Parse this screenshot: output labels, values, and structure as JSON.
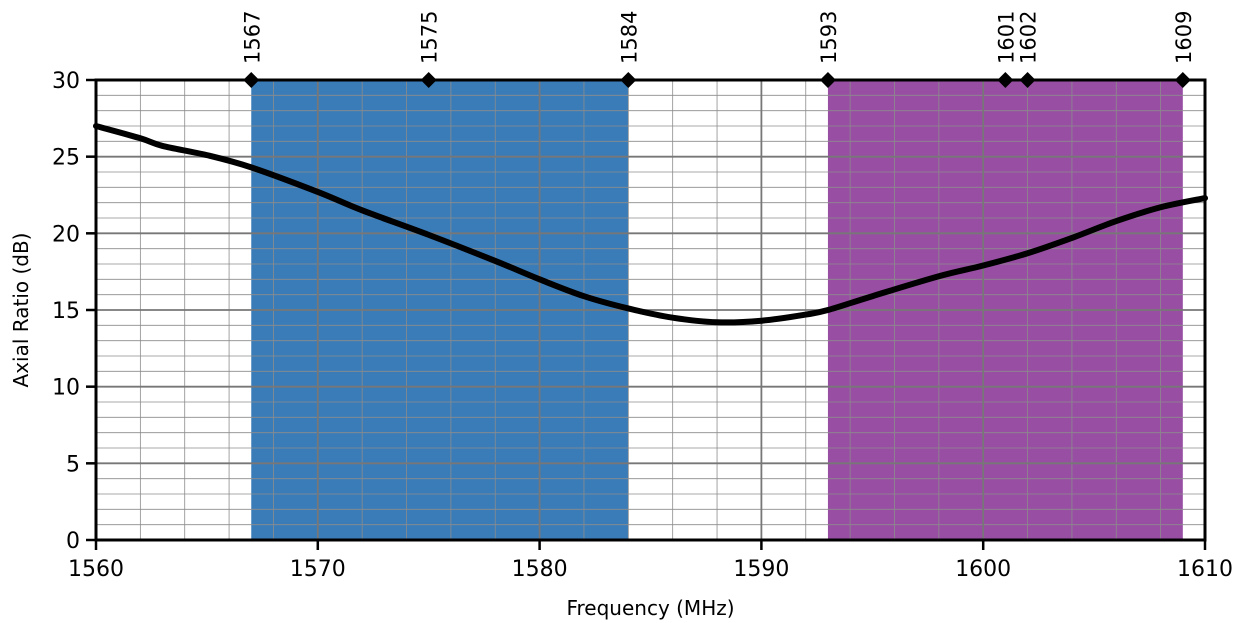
{
  "chart_data": {
    "type": "line",
    "title": "",
    "xlabel": "Frequency (MHz)",
    "ylabel": "Axial Ratio (dB)",
    "xlim": [
      1560,
      1610
    ],
    "ylim": [
      0,
      30
    ],
    "x_ticks": [
      1560,
      1570,
      1580,
      1590,
      1600,
      1610
    ],
    "x_tick_labels": [
      "1560",
      "1570",
      "1580",
      "1590",
      "1600",
      "1610"
    ],
    "y_ticks": [
      0,
      5,
      10,
      15,
      20,
      25,
      30
    ],
    "y_tick_labels": [
      "0",
      "5",
      "10",
      "15",
      "20",
      "25",
      "30"
    ],
    "grid": true,
    "legend": "none",
    "bands": [
      {
        "from": 1567,
        "to": 1584,
        "color": "#3a7cb8"
      },
      {
        "from": 1593,
        "to": 1609,
        "color": "#984ea3"
      }
    ],
    "markers": [
      {
        "x": 1567,
        "label": "1567"
      },
      {
        "x": 1575,
        "label": "1575"
      },
      {
        "x": 1584,
        "label": "1584"
      },
      {
        "x": 1593,
        "label": "1593"
      },
      {
        "x": 1601,
        "label": "1601"
      },
      {
        "x": 1602,
        "label": "1602"
      },
      {
        "x": 1609,
        "label": "1609"
      }
    ],
    "series": [
      {
        "color": "#000000",
        "x": [
          1560,
          1562,
          1563,
          1565,
          1567,
          1570,
          1572,
          1575,
          1578,
          1580,
          1582,
          1584,
          1586,
          1588,
          1590,
          1592,
          1593,
          1595,
          1598,
          1600,
          1602,
          1604,
          1606,
          1608,
          1610
        ],
        "y": [
          27.0,
          26.2,
          25.7,
          25.1,
          24.3,
          22.7,
          21.5,
          19.9,
          18.2,
          17.0,
          15.9,
          15.1,
          14.5,
          14.2,
          14.3,
          14.7,
          15.0,
          15.9,
          17.2,
          17.9,
          18.7,
          19.7,
          20.8,
          21.7,
          22.3
        ]
      }
    ]
  }
}
